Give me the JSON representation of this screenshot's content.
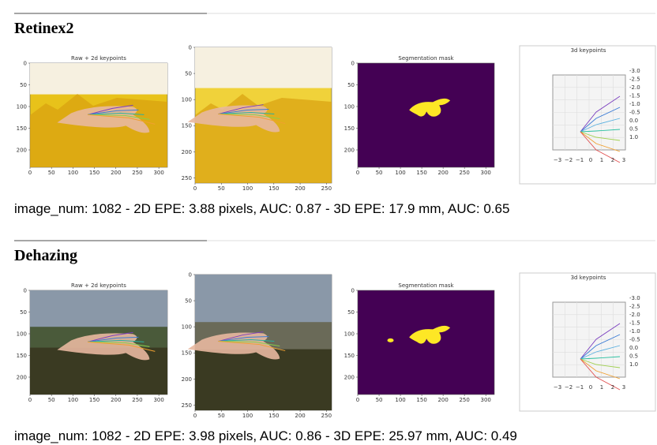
{
  "sections": [
    {
      "heading": "Retinex2",
      "panels": [
        {
          "title": "Raw + 2d keypoints",
          "xticks": [
            "0",
            "50",
            "100",
            "150",
            "200",
            "250",
            "300"
          ],
          "yticks": [
            "0",
            "50",
            "100",
            "150",
            "200"
          ]
        },
        {
          "xticks": [
            "0",
            "50",
            "100",
            "150",
            "200",
            "250"
          ],
          "yticks": [
            "0",
            "50",
            "100",
            "150",
            "200",
            "250"
          ]
        },
        {
          "title": "Segmentation mask",
          "xticks": [
            "0",
            "50",
            "100",
            "150",
            "200",
            "250",
            "300"
          ],
          "yticks": [
            "0",
            "50",
            "100",
            "150",
            "200"
          ]
        },
        {
          "title": "3d keypoints",
          "xticks": [
            "−3",
            "−2",
            "−1",
            "0",
            "1",
            "2",
            "3"
          ],
          "yticks": [
            "-3.0",
            "-2.5",
            "-2.0",
            "-1.5",
            "-1.0",
            "-0.5",
            "0.0",
            "0.5",
            "1.0"
          ]
        }
      ],
      "caption": "image_num: 1082 - 2D EPE: 3.88 pixels, AUC: 0.87 - 3D EPE: 17.9 mm, AUC: 0.65"
    },
    {
      "heading": "Dehazing",
      "panels": [
        {
          "title": "Raw + 2d keypoints",
          "xticks": [
            "0",
            "50",
            "100",
            "150",
            "200",
            "250",
            "300"
          ],
          "yticks": [
            "0",
            "50",
            "100",
            "150",
            "200"
          ]
        },
        {
          "xticks": [
            "0",
            "50",
            "100",
            "150",
            "200",
            "250"
          ],
          "yticks": [
            "0",
            "50",
            "100",
            "150",
            "200",
            "250"
          ]
        },
        {
          "title": "Segmentation mask",
          "xticks": [
            "0",
            "50",
            "100",
            "150",
            "200",
            "250",
            "300"
          ],
          "yticks": [
            "0",
            "50",
            "100",
            "150",
            "200"
          ]
        },
        {
          "title": "3d keypoints",
          "xticks": [
            "−3",
            "−2",
            "−1",
            "0",
            "1",
            "2",
            "3"
          ],
          "yticks": [
            "-3.0",
            "-2.5",
            "-2.0",
            "-1.5",
            "-1.0",
            "-0.5",
            "0.0",
            "0.5",
            "1.0"
          ]
        }
      ],
      "caption": "image_num: 1082 - 2D EPE: 3.98 pixels, AUC: 0.86 - 3D EPE: 25.97 mm, AUC: 0.49"
    }
  ]
}
